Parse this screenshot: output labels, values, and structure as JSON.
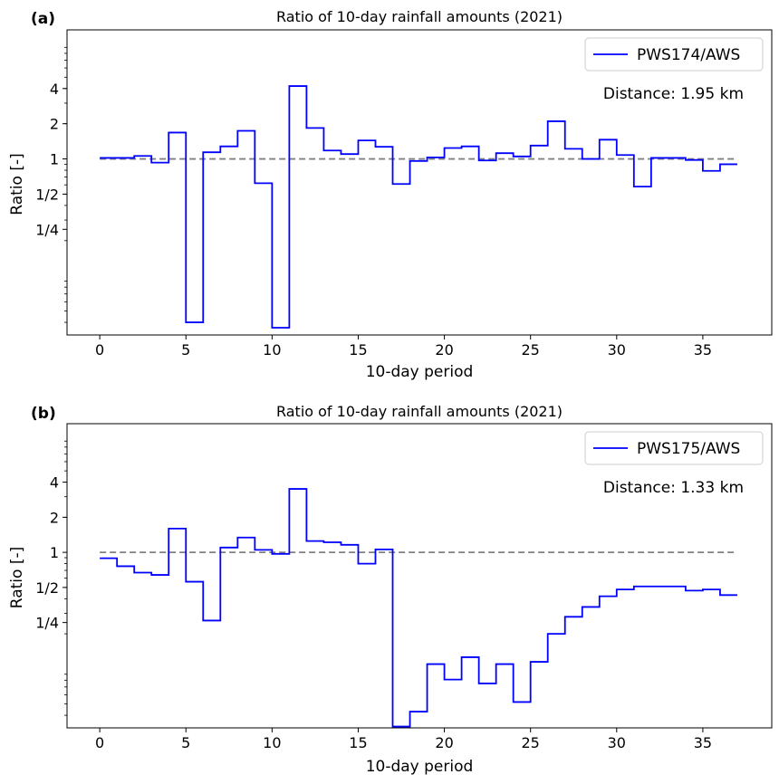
{
  "chart_data": [
    {
      "type": "line",
      "panel_label": "(a)",
      "title": "Ratio of 10-day rainfall amounts (2021)",
      "xlabel": "10-day period",
      "ylabel": "Ratio [-]",
      "xlim": [
        -1.9,
        39
      ],
      "x_ticks": [
        0,
        5,
        10,
        15,
        20,
        25,
        30,
        35
      ],
      "x_tick_labels": [
        "0",
        "5",
        "10",
        "15",
        "20",
        "25",
        "30",
        "35"
      ],
      "y_scale": "log2",
      "ylim": [
        0.0312,
        12.7
      ],
      "y_ticks": [
        4,
        2,
        1,
        0.5,
        0.25
      ],
      "y_tick_labels": [
        "4",
        "2",
        "1",
        "1/2",
        "1/4"
      ],
      "legend": "top-right",
      "annotation": "Distance: 1.95 km",
      "reference_line": {
        "value": 1,
        "style": "dashed",
        "color": "#808080"
      },
      "series": [
        {
          "name": "PWS174/AWS",
          "color": "#0000ff",
          "step": "post",
          "x": [
            0,
            1,
            2,
            3,
            4,
            5,
            6,
            7,
            8,
            9,
            10,
            11,
            12,
            13,
            14,
            15,
            16,
            17,
            18,
            19,
            20,
            21,
            22,
            23,
            24,
            25,
            26,
            27,
            28,
            29,
            30,
            31,
            32,
            33,
            34,
            35,
            36,
            37
          ],
          "values": [
            1.02,
            1.02,
            1.06,
            0.93,
            1.68,
            0.04,
            1.14,
            1.28,
            1.74,
            0.62,
            0.036,
            4.2,
            1.84,
            1.18,
            1.1,
            1.44,
            1.27,
            0.61,
            0.96,
            1.03,
            1.24,
            1.28,
            0.97,
            1.12,
            1.05,
            1.3,
            2.1,
            1.22,
            1.0,
            1.46,
            1.08,
            0.58,
            1.02,
            1.02,
            0.98,
            0.79,
            0.9,
            0.9
          ]
        }
      ]
    },
    {
      "type": "line",
      "panel_label": "(b)",
      "title": "Ratio of 10-day rainfall amounts (2021)",
      "xlabel": "10-day period",
      "ylabel": "Ratio [-]",
      "xlim": [
        -1.9,
        39
      ],
      "x_ticks": [
        0,
        5,
        10,
        15,
        20,
        25,
        30,
        35
      ],
      "x_tick_labels": [
        "0",
        "5",
        "10",
        "15",
        "20",
        "25",
        "30",
        "35"
      ],
      "y_scale": "log2",
      "ylim": [
        0.0312,
        12.7
      ],
      "y_ticks": [
        4,
        2,
        1,
        0.5,
        0.25
      ],
      "y_tick_labels": [
        "4",
        "2",
        "1",
        "1/2",
        "1/4"
      ],
      "legend": "top-right",
      "annotation": "Distance: 1.33 km",
      "reference_line": {
        "value": 1,
        "style": "dashed",
        "color": "#808080"
      },
      "series": [
        {
          "name": "PWS175/AWS",
          "color": "#0000ff",
          "step": "post",
          "x": [
            0,
            1,
            2,
            3,
            4,
            5,
            6,
            7,
            8,
            9,
            10,
            11,
            12,
            13,
            14,
            15,
            16,
            17,
            18,
            19,
            20,
            21,
            22,
            23,
            24,
            25,
            26,
            27,
            28,
            29,
            30,
            31,
            32,
            33,
            34,
            35,
            36,
            37
          ],
          "values": [
            0.89,
            0.76,
            0.67,
            0.64,
            1.6,
            0.56,
            0.26,
            1.1,
            1.34,
            1.05,
            0.97,
            3.5,
            1.25,
            1.22,
            1.16,
            0.8,
            1.06,
            0.032,
            0.043,
            0.11,
            0.081,
            0.126,
            0.075,
            0.11,
            0.052,
            0.115,
            0.2,
            0.28,
            0.34,
            0.42,
            0.48,
            0.51,
            0.51,
            0.51,
            0.47,
            0.48,
            0.43,
            0.43
          ]
        }
      ]
    }
  ]
}
